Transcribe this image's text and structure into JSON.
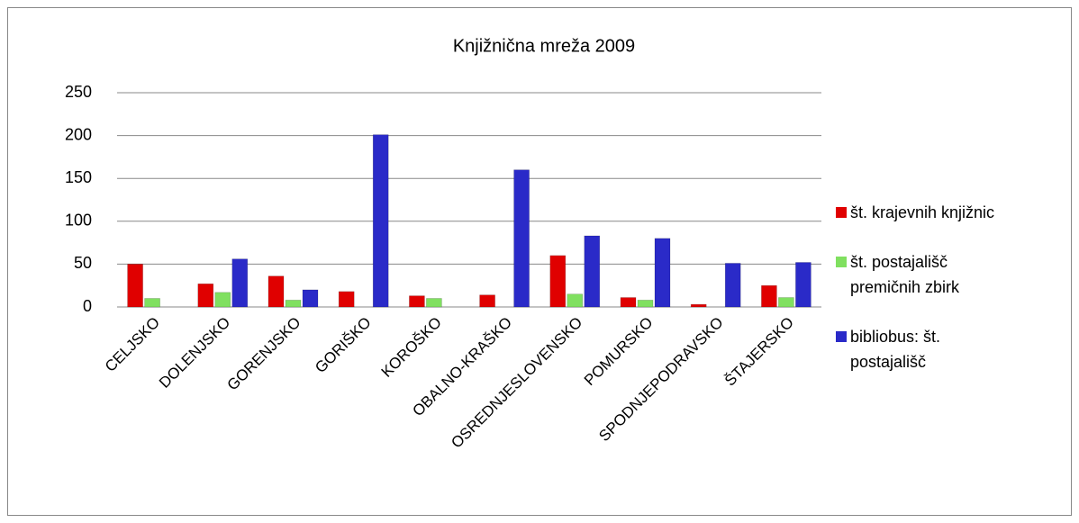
{
  "chart_data": {
    "type": "bar",
    "title": "Knjižnična mreža 2009",
    "categories": [
      "CELJSKO",
      "DOLENJSKO",
      "GORENJSKO",
      "GORIŠKO",
      "KOROŠKO",
      "OBALNO-KRAŠKO",
      "OSREDNJESLOVENSKO",
      "POMURSKO",
      "SPODNJEPODRAVSKO",
      "ŠTAJERSKO"
    ],
    "series": [
      {
        "name": "št. krajevnih knjižnic",
        "color": "#e00000",
        "values": [
          50,
          27,
          36,
          18,
          13,
          14,
          60,
          11,
          3,
          25
        ]
      },
      {
        "name": "št. postajališč premičnih zbirk",
        "color": "#80e060",
        "values": [
          10,
          17,
          8,
          0,
          10,
          0,
          15,
          8,
          0,
          11
        ]
      },
      {
        "name": "bibliobus: št. postajališč",
        "color": "#2a2ac8",
        "values": [
          0,
          56,
          20,
          201,
          0,
          160,
          83,
          80,
          51,
          52
        ]
      }
    ],
    "ylim": [
      0,
      250
    ],
    "yticks": [
      0,
      50,
      100,
      150,
      200,
      250
    ],
    "grid": true,
    "legend": "right"
  }
}
